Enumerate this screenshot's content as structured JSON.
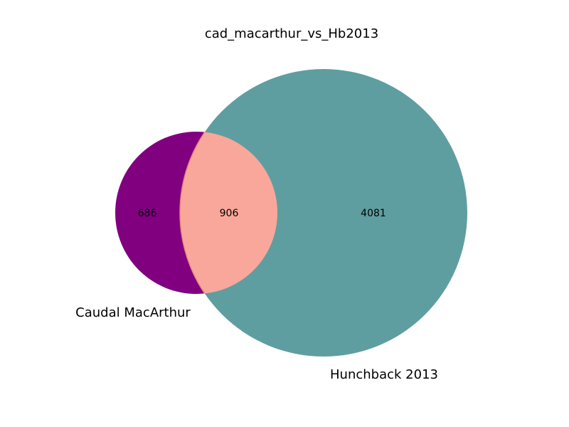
{
  "title": "cad_macarthur_vs_Hb2013",
  "sets": [
    {
      "key": "a",
      "label": "Caudal MacArthur",
      "color": "#800080"
    },
    {
      "key": "b",
      "label": "Hunchback 2013",
      "color": "#5f9ea0"
    }
  ],
  "regions": {
    "a_only": {
      "count": "686",
      "color": "#800080"
    },
    "intersection": {
      "count": "906",
      "color": "#faa79b"
    },
    "b_only": {
      "count": "4081",
      "color": "#5f9ea0"
    }
  }
}
